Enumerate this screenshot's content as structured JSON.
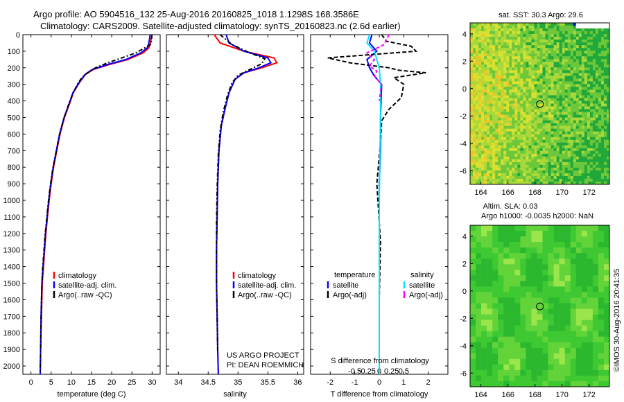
{
  "header": {
    "line1": "Argo profile: AO 5904516_132 25-Aug-2016 20160825_1018 1.1298S 168.3586E",
    "line2": "Climatology: CARS2009. Satellite-adjusted climatology: synTS_20160823.nc (2.6d earlier)"
  },
  "colors": {
    "climatology": "#ff0000",
    "satellite": "#0000ff",
    "argo": "#000000",
    "salinity_satellite": "#00e5ff",
    "salinity_argo": "#ff00ff"
  },
  "chart_data": [
    {
      "id": "temperature",
      "type": "line",
      "xlabel": "temperature (deg C)",
      "xlim": [
        -2,
        32
      ],
      "xticks": [
        0,
        5,
        10,
        15,
        20,
        25,
        30
      ],
      "xtick_labels": [
        "0",
        "5",
        "10",
        "15",
        "20",
        "25",
        "30"
      ],
      "ylim": [
        0,
        2050
      ],
      "yticks": [
        0,
        100,
        200,
        300,
        400,
        500,
        600,
        700,
        800,
        900,
        1000,
        1100,
        1200,
        1300,
        1400,
        1500,
        1600,
        1700,
        1800,
        1900,
        2000
      ],
      "y_inverted": true,
      "legend": [
        "climatology",
        "satellite-adj. clim.",
        "Argo(..raw -QC)"
      ],
      "legend_position": "lower-middle",
      "series": [
        {
          "name": "climatology",
          "x": [
            30.0,
            29.8,
            29.6,
            29.2,
            27.8,
            24.0,
            19.5,
            15.5,
            13.5,
            12.0,
            10.5,
            9.5,
            8.3,
            7.2,
            6.4,
            5.6,
            5.0,
            4.5,
            4.1,
            3.7,
            3.4,
            3.1,
            2.8,
            2.6,
            2.4,
            2.3
          ],
          "y": [
            0,
            20,
            50,
            80,
            110,
            150,
            180,
            210,
            240,
            290,
            350,
            420,
            500,
            600,
            700,
            800,
            900,
            1000,
            1100,
            1200,
            1300,
            1400,
            1500,
            1700,
            1900,
            2050
          ]
        },
        {
          "name": "satellite-adj. clim.",
          "x": [
            29.5,
            29.4,
            29.2,
            28.8,
            27.2,
            23.5,
            19.0,
            15.2,
            13.4,
            11.9,
            10.4,
            9.4,
            8.2,
            7.1,
            6.3,
            5.5,
            4.9,
            4.4,
            4.0,
            3.6,
            3.3,
            3.0,
            2.7,
            2.5,
            2.4,
            2.3
          ],
          "y": [
            0,
            20,
            50,
            80,
            110,
            150,
            180,
            210,
            240,
            290,
            350,
            420,
            500,
            600,
            700,
            800,
            900,
            1000,
            1100,
            1200,
            1300,
            1400,
            1500,
            1700,
            1900,
            2050
          ]
        },
        {
          "name": "Argo(..raw -QC)",
          "x": [
            29.9,
            29.9,
            29.6,
            26.0,
            22.5,
            19.0,
            16.0,
            14.0,
            12.6,
            11.5,
            10.3,
            9.2,
            8.1,
            7.0,
            6.2,
            5.4,
            4.8,
            4.3,
            3.9,
            3.5,
            3.2,
            2.9,
            2.7,
            2.5,
            2.4,
            2.3
          ],
          "y": [
            0,
            30,
            60,
            110,
            140,
            170,
            200,
            230,
            260,
            300,
            360,
            430,
            510,
            610,
            710,
            810,
            910,
            1010,
            1110,
            1210,
            1310,
            1410,
            1510,
            1710,
            1910,
            2040
          ]
        }
      ]
    },
    {
      "id": "salinity",
      "type": "line",
      "xlabel": "salinity",
      "xlim": [
        33.8,
        36.1
      ],
      "xticks": [
        34,
        34.5,
        35,
        35.5,
        36
      ],
      "xtick_labels": [
        "34",
        "34.5",
        "35",
        "35.5",
        "36"
      ],
      "ylim": [
        0,
        2050
      ],
      "y_inverted": true,
      "legend": [
        "climatology",
        "satellite-adj. clim.",
        "Argo(..raw -QC)"
      ],
      "legend_position": "lower-middle",
      "annotations": [
        "US ARGO PROJECT",
        "PI: DEAN ROEMMICH"
      ],
      "series": [
        {
          "name": "climatology",
          "x": [
            34.6,
            34.7,
            35.1,
            35.6,
            35.65,
            35.4,
            35.1,
            34.95,
            34.85,
            34.78,
            34.72,
            34.68,
            34.66,
            34.65,
            34.64,
            34.64,
            34.65,
            34.66,
            34.67
          ],
          "y": [
            0,
            50,
            100,
            140,
            170,
            200,
            230,
            270,
            350,
            450,
            550,
            700,
            900,
            1100,
            1300,
            1500,
            1700,
            1900,
            2050
          ]
        },
        {
          "name": "satellite-adj. clim.",
          "x": [
            34.8,
            34.85,
            35.1,
            35.5,
            35.55,
            35.35,
            35.1,
            34.95,
            34.85,
            34.78,
            34.72,
            34.68,
            34.66,
            34.65,
            34.64,
            34.64,
            34.65,
            34.66,
            34.67
          ],
          "y": [
            0,
            50,
            100,
            140,
            170,
            200,
            230,
            270,
            350,
            450,
            550,
            700,
            900,
            1100,
            1300,
            1500,
            1700,
            1900,
            2050
          ]
        },
        {
          "name": "Argo(..raw -QC)",
          "x": [
            34.7,
            34.9,
            35.2,
            35.45,
            35.4,
            35.2,
            35.0,
            34.9,
            34.82,
            34.75,
            34.7,
            34.67,
            34.65,
            34.64,
            34.64,
            34.64,
            34.65,
            34.66
          ],
          "y": [
            0,
            60,
            110,
            145,
            175,
            210,
            245,
            290,
            370,
            470,
            580,
            720,
            920,
            1120,
            1320,
            1520,
            1720,
            1920
          ]
        }
      ]
    },
    {
      "id": "difference",
      "type": "line",
      "xlabel": "T difference from climatology",
      "xlabel_top": "S difference from climatology",
      "xlim": [
        -2.8,
        2.8
      ],
      "xticks": [
        -2,
        -1,
        0,
        1,
        2
      ],
      "xtick_labels": [
        "-2",
        "-1",
        "0",
        "1",
        "2"
      ],
      "top_ticks": [
        -1,
        -0.5,
        0,
        0.5,
        1
      ],
      "top_tick_labels": [
        "-0.5",
        "-0.25",
        "0",
        "0.25",
        "0.5"
      ],
      "ylim": [
        0,
        2050
      ],
      "y_inverted": true,
      "legend": [
        "temperature",
        "satellite",
        "Argo(-adj)",
        "salinity",
        "satellite",
        "Argo(-adj)"
      ],
      "legend_position": "lower-middle",
      "series": [
        {
          "name": "temperature satellite",
          "x": [
            -0.3,
            -0.4,
            -0.1,
            -0.5,
            -0.4,
            -0.2,
            0.1,
            0.05,
            0.05,
            0,
            0,
            0,
            0,
            0
          ],
          "y": [
            0,
            50,
            100,
            150,
            200,
            250,
            300,
            500,
            700,
            900,
            1100,
            1400,
            1700,
            2050
          ]
        },
        {
          "name": "temperature Argo(-adj)",
          "x": [
            0.1,
            0.3,
            1.3,
            1.5,
            -2.1,
            -1.2,
            0.4,
            0.8,
            1.9,
            0.6,
            1.0,
            0.9,
            0.4,
            0.1,
            0.05,
            -0.1,
            0.05,
            0,
            0
          ],
          "y": [
            0,
            40,
            70,
            100,
            140,
            170,
            200,
            215,
            230,
            260,
            300,
            380,
            450,
            520,
            650,
            900,
            1250,
            1600,
            2000
          ]
        },
        {
          "name": "salinity satellite",
          "x": [
            -0.4,
            -0.5,
            -0.2,
            -0.1,
            0,
            0.05,
            0.05,
            0,
            0
          ],
          "y": [
            0,
            50,
            100,
            150,
            200,
            300,
            500,
            1000,
            2050
          ]
        },
        {
          "name": "salinity Argo(-adj)",
          "x": [
            0.4,
            0.2,
            -0.5,
            -0.2,
            -0.4,
            -0.1,
            -0.2,
            0.1,
            0
          ],
          "y": [
            0,
            60,
            110,
            150,
            190,
            220,
            250,
            300,
            400
          ]
        }
      ]
    },
    {
      "id": "sst_map",
      "type": "heatmap",
      "title": "sat. SST: 30.3 Argo: 29.6",
      "xlim": [
        163.2,
        173.5
      ],
      "xticks": [
        164,
        166,
        168,
        170,
        172
      ],
      "xtick_labels": [
        "164",
        "166",
        "168",
        "170",
        "172"
      ],
      "ylim": [
        -7,
        4.8
      ],
      "yticks": [
        -6,
        -4,
        -2,
        0,
        2,
        4
      ],
      "ytick_labels": [
        "-6",
        "-4",
        "-2",
        "0",
        "2",
        "4"
      ],
      "argo_position": {
        "lon": 168.36,
        "lat": -1.13
      }
    },
    {
      "id": "sla_map",
      "type": "heatmap",
      "title": "Altim. SLA: 0.03",
      "subtitle": "Argo h1000: -0.0035 h2000: NaN",
      "xlim": [
        163.2,
        173.5
      ],
      "xticks": [
        164,
        166,
        168,
        170,
        172
      ],
      "xtick_labels": [
        "164",
        "166",
        "168",
        "170",
        "172"
      ],
      "ylim": [
        -7,
        4.8
      ],
      "yticks": [
        -6,
        -4,
        -2,
        0,
        2,
        4
      ],
      "ytick_labels": [
        "-6",
        "-4",
        "-2",
        "0",
        "2",
        "4"
      ],
      "argo_position": {
        "lon": 168.36,
        "lat": -1.13
      }
    }
  ],
  "footer": {
    "imos_stamp": "©IMOS 30-Aug-2016 20:41:35"
  }
}
